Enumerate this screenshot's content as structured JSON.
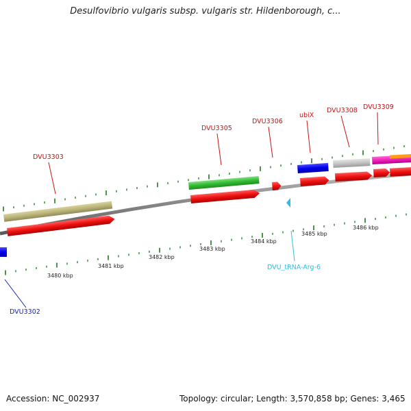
{
  "title": "Desulfovibrio vulgaris subsp. vulgaris str. Hildenborough, c...",
  "footer": {
    "accession": "Accession: NC_002937",
    "topology": "Topology: circular; Length: 3,570,858 bp; Genes: 3,465"
  },
  "colors": {
    "cds": "#ee1111",
    "gene_label": "#cc1111",
    "tick": "#1a7a1a",
    "backbone": "#888888",
    "trna": "#33bbdd",
    "reverse_gene_label": "#1122bb"
  },
  "gene_labels": [
    {
      "id": "DVU3303",
      "text": "DVU3303"
    },
    {
      "id": "DVU3305",
      "text": "DVU3305"
    },
    {
      "id": "DVU3306",
      "text": "DVU3306"
    },
    {
      "id": "ubiX",
      "text": "ubiX"
    },
    {
      "id": "DVU3308",
      "text": "DVU3308"
    },
    {
      "id": "DVU3309",
      "text": "DVU3309"
    }
  ],
  "reverse_labels": [
    {
      "id": "DVU3302",
      "text": "DVU3302"
    },
    {
      "id": "trna",
      "text": "DVU_tRNA-Arg-6"
    }
  ],
  "kbp_ticks": [
    "3480 kbp",
    "3481 kbp",
    "3482 kbp",
    "3483 kbp",
    "3484 kbp",
    "3485 kbp",
    "3486 kbp"
  ]
}
